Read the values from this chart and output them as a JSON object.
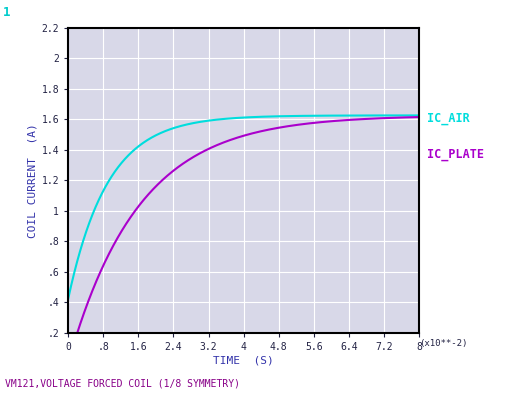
{
  "title_top_left": "1",
  "title_top_left_color": "#00CCCC",
  "subtitle": "VM121,VOLTAGE FORCED COIL (1/8 SYMMETRY)",
  "subtitle_color": "#880088",
  "xlabel": "TIME  (S)",
  "ylabel": "COIL CURRENT  (A)",
  "xlabel_color": "#3333AA",
  "ylabel_color": "#3333AA",
  "x_scale_note": "(x10**-2)",
  "xlim": [
    0,
    8
  ],
  "ylim": [
    0.2,
    2.2
  ],
  "x_ticks": [
    0,
    0.8,
    1.6,
    2.4,
    3.2,
    4.0,
    4.8,
    5.6,
    6.4,
    7.2,
    8.0
  ],
  "x_tick_labels": [
    "0",
    ".8",
    "1.6",
    "2.4",
    "3.2",
    "4",
    "4.8",
    "5.6",
    "6.4",
    "7.2",
    "8"
  ],
  "y_ticks": [
    0.2,
    0.4,
    0.6,
    0.8,
    1.0,
    1.2,
    1.4,
    1.6,
    1.8,
    2.0,
    2.2
  ],
  "y_tick_labels": [
    ".2",
    ".4",
    ".6",
    ".8",
    "1",
    "1.2",
    "1.4",
    "1.6",
    "1.8",
    "2",
    "2.2"
  ],
  "ic_air_color": "#00DDDD",
  "ic_plate_color": "#AA00CC",
  "ic_air_label": "IC_AIR",
  "ic_plate_label": "IC_PLATE",
  "bg_color": "#FFFFFF",
  "plot_bg_color": "#D8D8E8",
  "grid_color": "#FFFFFF",
  "axes_color": "#000000",
  "tick_color": "#222244",
  "ic_air_tau": 0.9,
  "ic_air_ss": 1.625,
  "ic_air_start": 0.42,
  "ic_plate_tau": 1.6,
  "ic_plate_ss": 1.625,
  "ic_plate_start": 0.0
}
